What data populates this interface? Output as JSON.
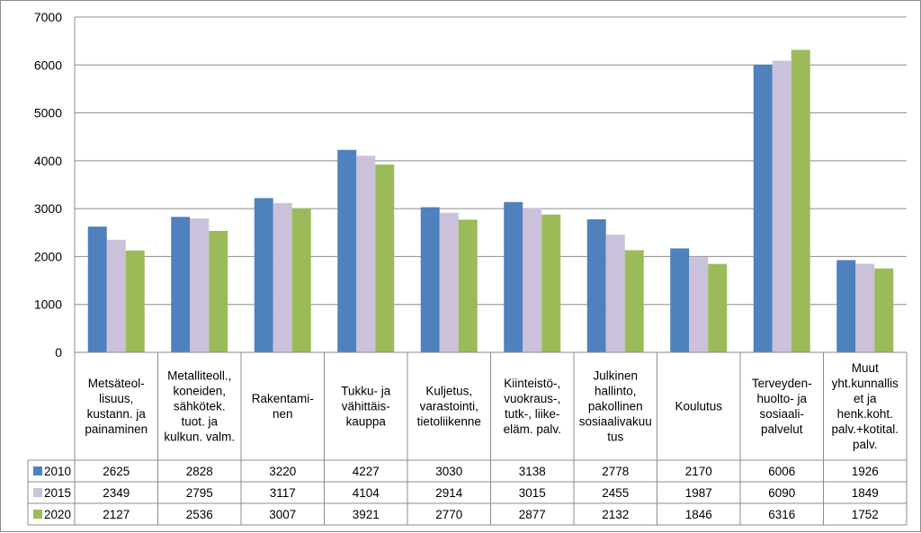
{
  "chart_data": {
    "type": "bar",
    "title": "",
    "xlabel": "",
    "ylabel": "",
    "ylim": [
      0,
      7000
    ],
    "yticks": [
      "0",
      "1000",
      "2000",
      "3000",
      "4000",
      "5000",
      "6000",
      "7000"
    ],
    "grid": true,
    "legend": "data-table-left",
    "categories": [
      [
        "Metsäteol-",
        "lisuus,",
        "kustann. ja",
        "painaminen"
      ],
      [
        "Metalliteoll.,",
        "koneiden,",
        "sähkötek.",
        "tuot. ja",
        "kulkun. valm."
      ],
      [
        "Rakentami-",
        "nen"
      ],
      [
        "Tukku- ja",
        "vähittäis-",
        "kauppa"
      ],
      [
        "Kuljetus,",
        "varastointi,",
        "tietoliikenne"
      ],
      [
        "Kiinteistö-,",
        "vuokraus-,",
        "tutk-, liike-",
        "eläm. palv."
      ],
      [
        "Julkinen",
        "hallinto,",
        "pakollinen",
        "sosiaalivakuu",
        "tus"
      ],
      [
        "Koulutus"
      ],
      [
        "Terveyden-",
        "huolto- ja",
        "sosiaali-",
        "palvelut"
      ],
      [
        "Muut",
        "yht.kunnallis",
        "et ja",
        "henk.koht.",
        "palv.+kotital.",
        "palv."
      ]
    ],
    "series": [
      {
        "name": "2010",
        "color": "#4f81bd",
        "values": [
          2625,
          2828,
          3220,
          4227,
          3030,
          3138,
          2778,
          2170,
          6006,
          1926
        ]
      },
      {
        "name": "2015",
        "color": "#ccc1da",
        "values": [
          2349,
          2795,
          3117,
          4104,
          2914,
          3015,
          2455,
          1987,
          6090,
          1849
        ]
      },
      {
        "name": "2020",
        "color": "#9bbb59",
        "values": [
          2127,
          2536,
          3007,
          3921,
          2770,
          2877,
          2132,
          1846,
          6316,
          1752
        ]
      }
    ]
  }
}
